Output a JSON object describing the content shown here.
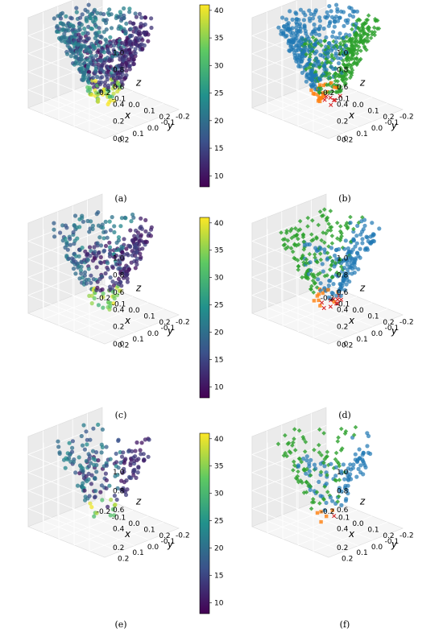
{
  "figure": {
    "captions": [
      "(a)",
      "(b)",
      "(c)",
      "(d)",
      "(e)",
      "(f)"
    ]
  },
  "colormap": {
    "name": "viridis",
    "stops": [
      "#440154",
      "#3b528b",
      "#21918c",
      "#5ec962",
      "#fde725"
    ],
    "range": [
      8,
      41
    ],
    "ticks": [
      "10",
      "15",
      "20",
      "25",
      "30",
      "35",
      "40"
    ]
  },
  "cluster_colors": {
    "blue": "#1f77b4",
    "green": "#2ca02c",
    "orange": "#ff7f0e",
    "red": "#d62728"
  },
  "chart_data": [
    {
      "id": "a",
      "type": "scatter",
      "subtype": "3d",
      "color_mode": "colormap",
      "xlabel": "x",
      "ylabel": "y",
      "zlabel": "z",
      "xlim": [
        -0.25,
        0.25
      ],
      "ylim": [
        -0.25,
        0.25
      ],
      "zlim": [
        0,
        1.05
      ],
      "x_ticks": [
        "-0.2",
        "-0.1",
        "0.0",
        "0.1",
        "0.2"
      ],
      "y_ticks": [
        "-0.2",
        "-0.1",
        "0.0",
        "0.1",
        "0.2"
      ],
      "z_ticks": [
        "0.0",
        "0.2",
        "0.4",
        "0.6",
        "0.8",
        "1.0"
      ],
      "grid": true,
      "colorbar": true,
      "point_density": "dense",
      "description_values": {
        "value_range": [
          8,
          41
        ]
      }
    },
    {
      "id": "b",
      "type": "scatter",
      "subtype": "3d",
      "color_mode": "clusters",
      "xlabel": "x",
      "ylabel": "y",
      "zlabel": "z",
      "xlim": [
        -0.25,
        0.25
      ],
      "ylim": [
        -0.25,
        0.25
      ],
      "zlim": [
        0,
        1.05
      ],
      "x_ticks": [
        "-0.2",
        "-0.1",
        "0.0",
        "0.1",
        "0.2"
      ],
      "y_ticks": [
        "-0.2",
        "-0.1",
        "0.0",
        "0.1",
        "0.2"
      ],
      "z_ticks": [
        "0.0",
        "0.2",
        "0.4",
        "0.6",
        "0.8",
        "1.0"
      ],
      "grid": true,
      "colorbar": false,
      "point_density": "dense",
      "clusters": [
        "blue",
        "green",
        "orange",
        "red"
      ]
    },
    {
      "id": "c",
      "type": "scatter",
      "subtype": "3d",
      "color_mode": "colormap",
      "xlabel": "x",
      "ylabel": "y",
      "zlabel": "z",
      "xlim": [
        -0.25,
        0.25
      ],
      "ylim": [
        -0.25,
        0.25
      ],
      "zlim": [
        0,
        1.05
      ],
      "x_ticks": [
        "-0.2",
        "-0.1",
        "0.0",
        "0.1",
        "0.2"
      ],
      "y_ticks": [
        "-0.2",
        "-0.1",
        "0.0",
        "0.1",
        "0.2"
      ],
      "z_ticks": [
        "0.0",
        "0.2",
        "0.4",
        "0.6",
        "0.8",
        "1.0"
      ],
      "grid": true,
      "colorbar": true,
      "point_density": "medium"
    },
    {
      "id": "d",
      "type": "scatter",
      "subtype": "3d",
      "color_mode": "clusters",
      "xlabel": "x",
      "ylabel": "y",
      "zlabel": "z",
      "xlim": [
        -0.25,
        0.25
      ],
      "ylim": [
        -0.25,
        0.25
      ],
      "zlim": [
        0,
        1.05
      ],
      "x_ticks": [
        "-0.2",
        "-0.1",
        "0.0",
        "0.1",
        "0.2"
      ],
      "y_ticks": [
        "-0.2",
        "-0.1",
        "0.0",
        "0.1",
        "0.2"
      ],
      "z_ticks": [
        "0.0",
        "0.2",
        "0.4",
        "0.6",
        "0.8",
        "1.0"
      ],
      "grid": true,
      "colorbar": false,
      "point_density": "medium",
      "clusters": [
        "green",
        "blue",
        "orange",
        "red"
      ]
    },
    {
      "id": "e",
      "type": "scatter",
      "subtype": "3d",
      "color_mode": "colormap",
      "xlabel": "x",
      "ylabel": "y",
      "zlabel": "z",
      "xlim": [
        -0.25,
        0.25
      ],
      "ylim": [
        -0.25,
        0.25
      ],
      "zlim": [
        0.1,
        1.05
      ],
      "x_ticks": [
        "-0.2",
        "-0.1",
        "0.0",
        "0.1",
        "0.2"
      ],
      "y_ticks": [
        "-0.2",
        "-0.1",
        "0.0",
        "0.1",
        "0.2"
      ],
      "z_ticks": [
        "0.2",
        "0.4",
        "0.6",
        "0.8",
        "1.0"
      ],
      "grid": true,
      "colorbar": true,
      "point_density": "sparse"
    },
    {
      "id": "f",
      "type": "scatter",
      "subtype": "3d",
      "color_mode": "clusters",
      "xlabel": "x",
      "ylabel": "y",
      "zlabel": "z",
      "xlim": [
        -0.25,
        0.25
      ],
      "ylim": [
        -0.25,
        0.25
      ],
      "zlim": [
        0.1,
        1.05
      ],
      "x_ticks": [
        "-0.2",
        "-0.1",
        "0.0",
        "0.1",
        "0.2"
      ],
      "y_ticks": [
        "-0.2",
        "-0.1",
        "0.0",
        "0.1",
        "0.2"
      ],
      "z_ticks": [
        "0.2",
        "0.4",
        "0.6",
        "0.8",
        "1.0"
      ],
      "grid": true,
      "colorbar": false,
      "point_density": "sparse",
      "clusters": [
        "green",
        "blue",
        "orange",
        "red"
      ]
    }
  ]
}
